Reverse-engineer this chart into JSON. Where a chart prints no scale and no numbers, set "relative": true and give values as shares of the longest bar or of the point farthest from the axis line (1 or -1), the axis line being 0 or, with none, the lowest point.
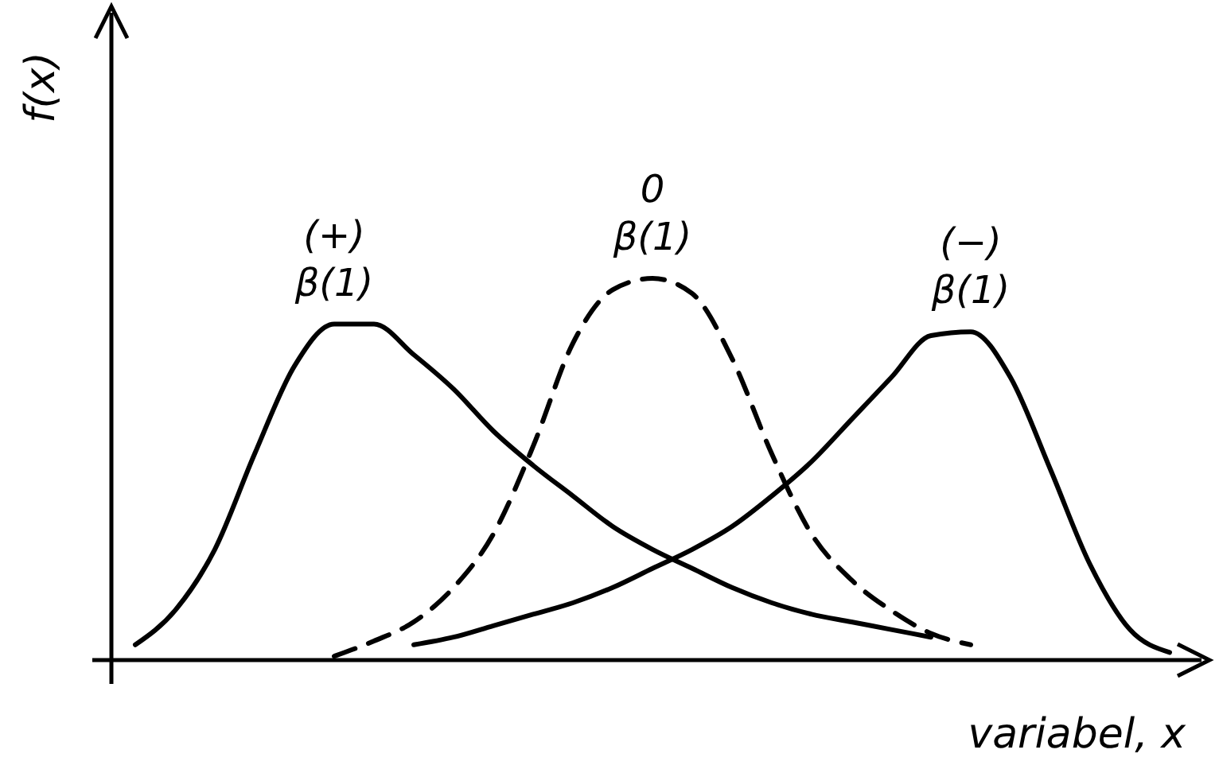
{
  "chart_data": {
    "type": "line",
    "relative": true,
    "xlabel": "variabel, x",
    "ylabel": "f(x)",
    "legend": false,
    "marker": "none",
    "categories": [
      null,
      null,
      null,
      null,
      null,
      null,
      null,
      null,
      null,
      null,
      null,
      null,
      null,
      null,
      null,
      null,
      null,
      null,
      null,
      null,
      null,
      null,
      null,
      null,
      null,
      null,
      null
    ],
    "series": [
      {
        "name": "(+)\nβ(1)",
        "color": "#000000",
        "line_style": "solid",
        "values": [
          0.04,
          0.13,
          0.29,
          0.54,
          0.77,
          0.88,
          0.88,
          0.8,
          0.71,
          0.6,
          0.51,
          0.43,
          0.35,
          0.29,
          0.24,
          0.19,
          0.15,
          0.12,
          0.1,
          0.08,
          0.06,
          null,
          null,
          null,
          null,
          null,
          null
        ]
      },
      {
        "name": "0\nβ(1)",
        "color": "#000000",
        "line_style": "dashed",
        "values": [
          null,
          null,
          null,
          null,
          null,
          0.01,
          0.05,
          0.1,
          0.19,
          0.33,
          0.56,
          0.83,
          0.97,
          1.0,
          0.96,
          0.79,
          0.54,
          0.33,
          0.21,
          0.13,
          0.07,
          0.04,
          null,
          null,
          null,
          null,
          null
        ]
      },
      {
        "name": "(−)\nβ(1)",
        "color": "#000000",
        "line_style": "solid",
        "values": [
          null,
          null,
          null,
          null,
          null,
          null,
          null,
          0.04,
          0.06,
          0.09,
          0.12,
          0.15,
          0.19,
          0.24,
          0.29,
          0.35,
          0.43,
          0.52,
          0.63,
          0.74,
          0.85,
          0.86,
          0.74,
          0.5,
          0.25,
          0.08,
          0.02
        ]
      }
    ]
  }
}
